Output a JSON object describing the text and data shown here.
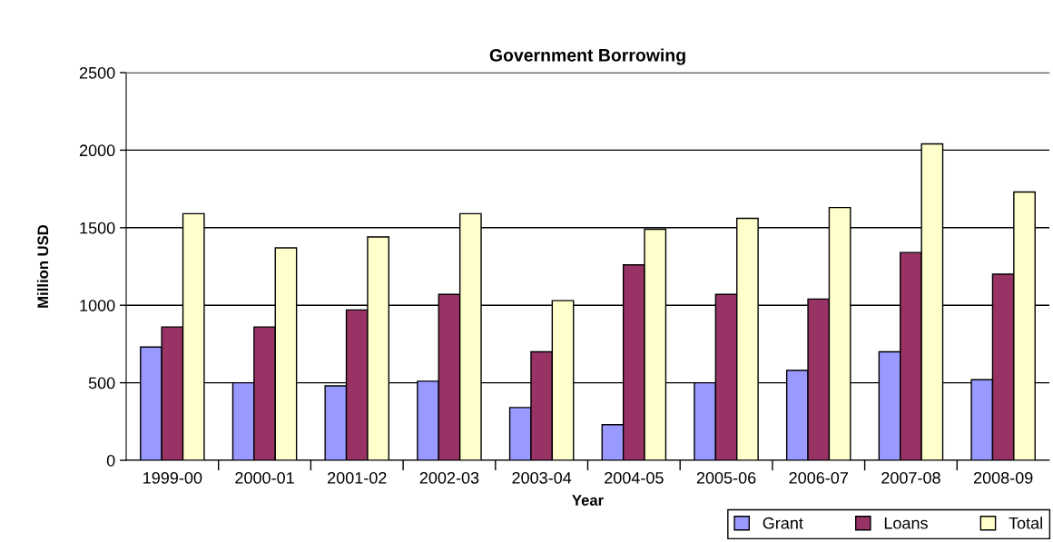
{
  "chart_data": {
    "type": "bar",
    "title": "Government Borrowing",
    "xlabel": "Year",
    "ylabel": "Million USD",
    "categories": [
      "1999-00",
      "2000-01",
      "2001-02",
      "2002-03",
      "2003-04",
      "2004-05",
      "2005-06",
      "2006-07",
      "2007-08",
      "2008-09"
    ],
    "series": [
      {
        "name": "Grant",
        "color": "#9999ff",
        "values": [
          730,
          500,
          480,
          510,
          340,
          230,
          500,
          580,
          700,
          520
        ]
      },
      {
        "name": "Loans",
        "color": "#993366",
        "values": [
          860,
          860,
          970,
          1070,
          700,
          1260,
          1070,
          1040,
          1340,
          1200
        ]
      },
      {
        "name": "Total",
        "color": "#ffffcc",
        "values": [
          1590,
          1370,
          1440,
          1590,
          1030,
          1490,
          1560,
          1630,
          2040,
          1730
        ]
      }
    ],
    "ylim": [
      0,
      2500
    ],
    "yticks": [
      0,
      500,
      1000,
      1500,
      2000,
      2500
    ],
    "grid": "y",
    "legend": "bottom right"
  }
}
